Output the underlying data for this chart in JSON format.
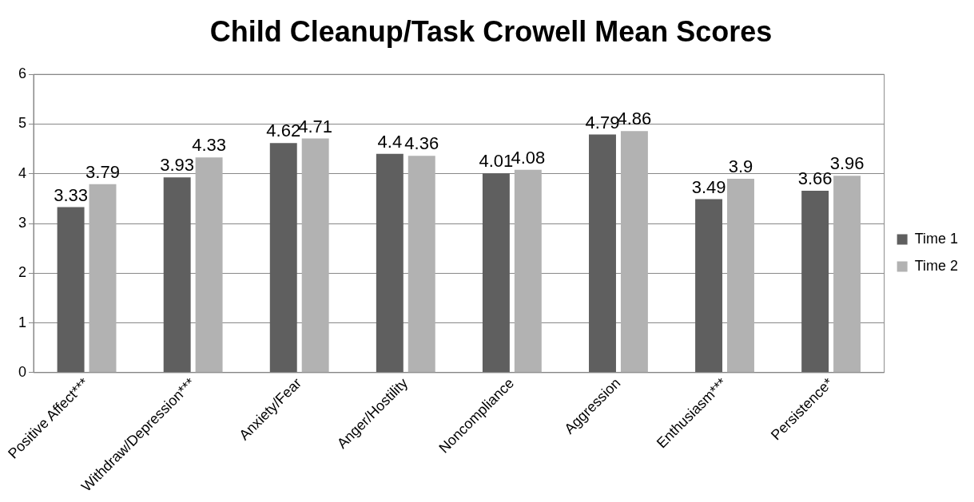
{
  "chart_data": {
    "type": "bar",
    "title": "Child Cleanup/Task Crowell Mean Scores",
    "categories": [
      "Positive Affect***",
      "Withdraw/Depression***",
      "Anxiety/Fear",
      "Anger/Hostility",
      "Noncompliance",
      "Aggression",
      "Enthusiasm***",
      "Persistence*"
    ],
    "series": [
      {
        "name": "Time 1",
        "color": "#5f5f5f",
        "values": [
          3.33,
          3.93,
          4.62,
          4.4,
          4.01,
          4.79,
          3.49,
          3.66
        ]
      },
      {
        "name": "Time 2",
        "color": "#b2b2b2",
        "values": [
          3.79,
          4.33,
          4.71,
          4.36,
          4.08,
          4.86,
          3.9,
          3.96
        ]
      }
    ],
    "ylim": [
      0,
      6
    ],
    "yticks": [
      0,
      1,
      2,
      3,
      4,
      5,
      6
    ],
    "grid": "y",
    "legend": "right",
    "data_labels": true
  }
}
